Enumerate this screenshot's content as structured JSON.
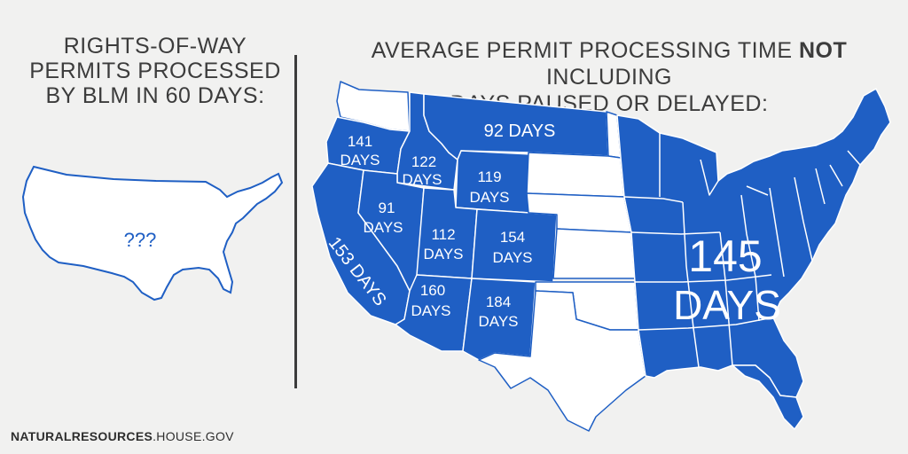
{
  "left_title": {
    "line1": "RIGHTS-OF-WAY",
    "line2": "PERMITS PROCESSED",
    "line3": "BY BLM IN 60 DAYS:"
  },
  "small_map": {
    "label": "???"
  },
  "right_title": {
    "line1_pre": "AVERAGE PERMIT PROCESSING TIME ",
    "line1_bold": "NOT",
    "line1_post": " INCLUDING",
    "line2": "DAYS PAUSED OR DELAYED:"
  },
  "regions": [
    {
      "name": "washington",
      "days": ""
    },
    {
      "name": "oregon",
      "number": "141",
      "unit": "DAYS"
    },
    {
      "name": "california",
      "text": "153 DAYS"
    },
    {
      "name": "idaho",
      "number": "122",
      "unit": "DAYS"
    },
    {
      "name": "nevada",
      "number": "91",
      "unit": "DAYS"
    },
    {
      "name": "montana",
      "text": "92 DAYS"
    },
    {
      "name": "wyoming",
      "number": "119",
      "unit": "DAYS"
    },
    {
      "name": "utah",
      "number": "112",
      "unit": "DAYS"
    },
    {
      "name": "colorado",
      "number": "154",
      "unit": "DAYS"
    },
    {
      "name": "arizona",
      "number": "160",
      "unit": "DAYS"
    },
    {
      "name": "new-mexico",
      "number": "184",
      "unit": "DAYS"
    },
    {
      "name": "eastern-states",
      "number": "145",
      "unit": "DAYS"
    }
  ],
  "colors": {
    "fill": "#1f5fc4",
    "outline": "#1f5fc4",
    "unshaded": "#ffffff",
    "background": "#f1f1f0"
  },
  "footer": {
    "bold": "NATURALRESOURCES",
    "rest": ".HOUSE.GOV"
  }
}
